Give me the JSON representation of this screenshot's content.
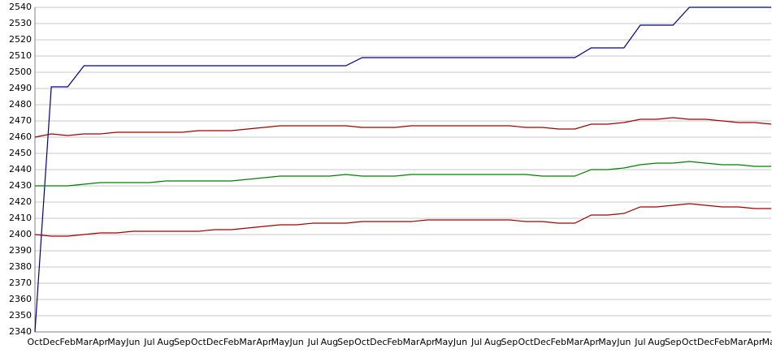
{
  "chart_data": {
    "type": "line",
    "categories": [
      "Oct",
      "Dec",
      "Feb",
      "Mar",
      "Apr",
      "May",
      "Jun",
      "Jul",
      "Aug",
      "Sep",
      "Oct",
      "Dec",
      "Feb",
      "Mar",
      "Apr",
      "May",
      "Jun",
      "Jul",
      "Aug",
      "Sep",
      "Oct",
      "Dec",
      "Feb",
      "Mar",
      "Apr",
      "May",
      "Jun",
      "Jul",
      "Aug",
      "Sep",
      "Oct",
      "Dec",
      "Feb",
      "Mar",
      "Apr",
      "May",
      "Jun",
      "Jul",
      "Aug",
      "Sep",
      "Oct",
      "Dec",
      "Feb",
      "Mar",
      "Apr",
      "May"
    ],
    "series": [
      {
        "color": "#00008b",
        "values": [
          2340,
          2491,
          2491,
          2504,
          2504,
          2504,
          2504,
          2504,
          2504,
          2504,
          2504,
          2504,
          2504,
          2504,
          2504,
          2504,
          2504,
          2504,
          2504,
          2504,
          2509,
          2509,
          2509,
          2509,
          2509,
          2509,
          2509,
          2509,
          2509,
          2509,
          2509,
          2509,
          2509,
          2509,
          2515,
          2515,
          2515,
          2529,
          2529,
          2529,
          2540,
          2540,
          2540,
          2540,
          2540,
          2540
        ]
      },
      {
        "color": "#a00000",
        "values": [
          2460,
          2462,
          2461,
          2462,
          2462,
          2463,
          2463,
          2463,
          2463,
          2463,
          2464,
          2464,
          2464,
          2465,
          2466,
          2467,
          2467,
          2467,
          2467,
          2467,
          2466,
          2466,
          2466,
          2467,
          2467,
          2467,
          2467,
          2467,
          2467,
          2467,
          2466,
          2466,
          2465,
          2465,
          2468,
          2468,
          2469,
          2471,
          2471,
          2472,
          2471,
          2471,
          2470,
          2469,
          2469,
          2468
        ]
      },
      {
        "color": "#008000",
        "values": [
          2430,
          2430,
          2430,
          2431,
          2432,
          2432,
          2432,
          2432,
          2433,
          2433,
          2433,
          2433,
          2433,
          2434,
          2435,
          2436,
          2436,
          2436,
          2436,
          2437,
          2436,
          2436,
          2436,
          2437,
          2437,
          2437,
          2437,
          2437,
          2437,
          2437,
          2437,
          2436,
          2436,
          2436,
          2440,
          2440,
          2441,
          2443,
          2444,
          2444,
          2445,
          2444,
          2443,
          2443,
          2442,
          2442
        ]
      },
      {
        "color": "#a00000",
        "values": [
          2400,
          2399,
          2399,
          2400,
          2401,
          2401,
          2402,
          2402,
          2402,
          2402,
          2402,
          2403,
          2403,
          2404,
          2405,
          2406,
          2406,
          2407,
          2407,
          2407,
          2408,
          2408,
          2408,
          2408,
          2409,
          2409,
          2409,
          2409,
          2409,
          2409,
          2408,
          2408,
          2407,
          2407,
          2412,
          2412,
          2413,
          2417,
          2417,
          2418,
          2419,
          2418,
          2417,
          2417,
          2416,
          2416
        ]
      }
    ],
    "ylim": [
      2340,
      2540
    ],
    "yticks": [
      2340,
      2350,
      2360,
      2370,
      2380,
      2390,
      2400,
      2410,
      2420,
      2430,
      2440,
      2450,
      2460,
      2470,
      2480,
      2490,
      2500,
      2510,
      2520,
      2530,
      2540
    ],
    "grid": true
  }
}
